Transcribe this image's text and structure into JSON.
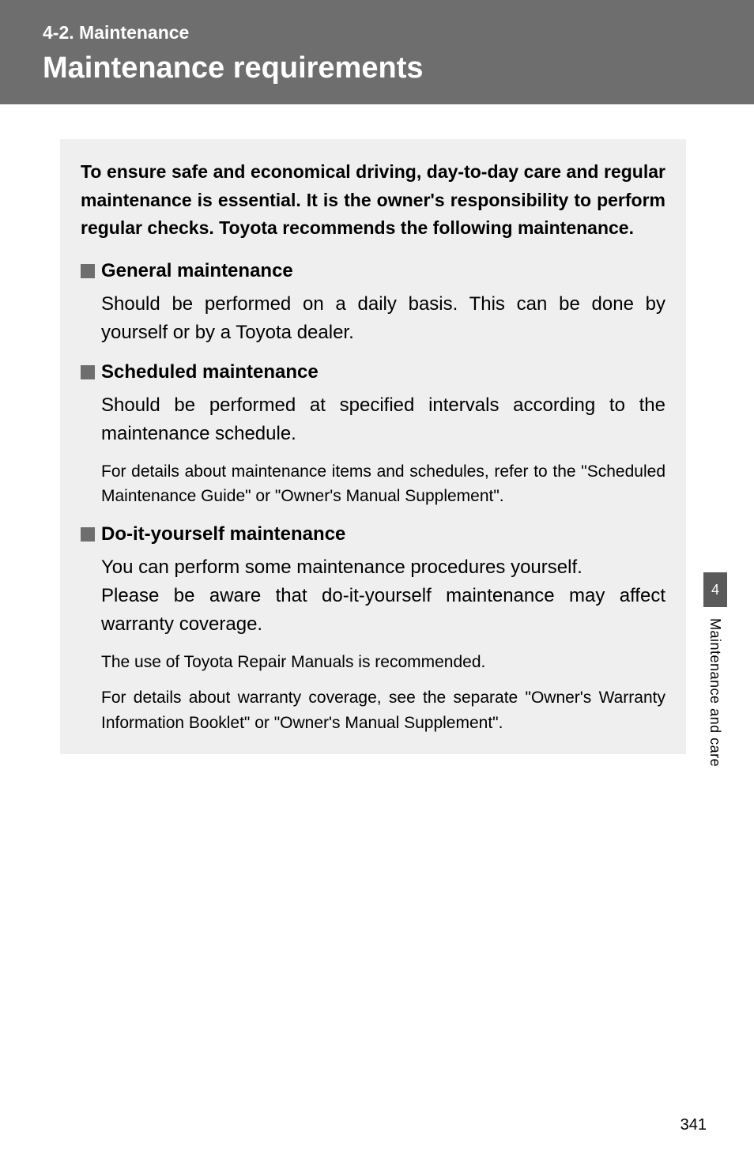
{
  "header": {
    "section_label": "4-2. Maintenance",
    "section_title": "Maintenance requirements"
  },
  "intro": "To ensure safe and economical driving, day-to-day care and regular maintenance is essential. It is the owner's responsibility to perform regular checks. Toyota recommends the following maintenance.",
  "blocks": [
    {
      "heading": "General maintenance",
      "body": "Should be performed on a daily basis. This can be done by yourself or by a Toyota dealer.",
      "subs": []
    },
    {
      "heading": "Scheduled maintenance",
      "body": "Should be performed at specified intervals according to the maintenance schedule.",
      "subs": [
        "For details about maintenance items and schedules, refer to the \"Scheduled Maintenance Guide\" or \"Owner's Manual Supplement\"."
      ]
    },
    {
      "heading": "Do-it-yourself maintenance",
      "body": "You can perform some maintenance procedures yourself.\nPlease be aware that do-it-yourself maintenance may affect warranty coverage.",
      "subs": [
        "The use of Toyota Repair Manuals is recommended.",
        "For details about warranty coverage, see the separate \"Owner's Warranty Information Booklet\" or \"Owner's Manual Supplement\"."
      ]
    }
  ],
  "side_tab": {
    "number": "4",
    "text": "Maintenance and care"
  },
  "page_number": "341",
  "colors": {
    "header_bg": "#6e6e6e",
    "box_bg": "#efefef",
    "square_bg": "#6e6e6e",
    "tab_bg": "#5a5a5a",
    "text": "#000000",
    "header_text": "#ffffff"
  },
  "typography": {
    "section_label_pt": 23,
    "section_title_pt": 38,
    "intro_pt": 23,
    "heading_pt": 24,
    "body_pt": 24,
    "sub_pt": 21,
    "tab_pt": 18,
    "page_num_pt": 20
  }
}
